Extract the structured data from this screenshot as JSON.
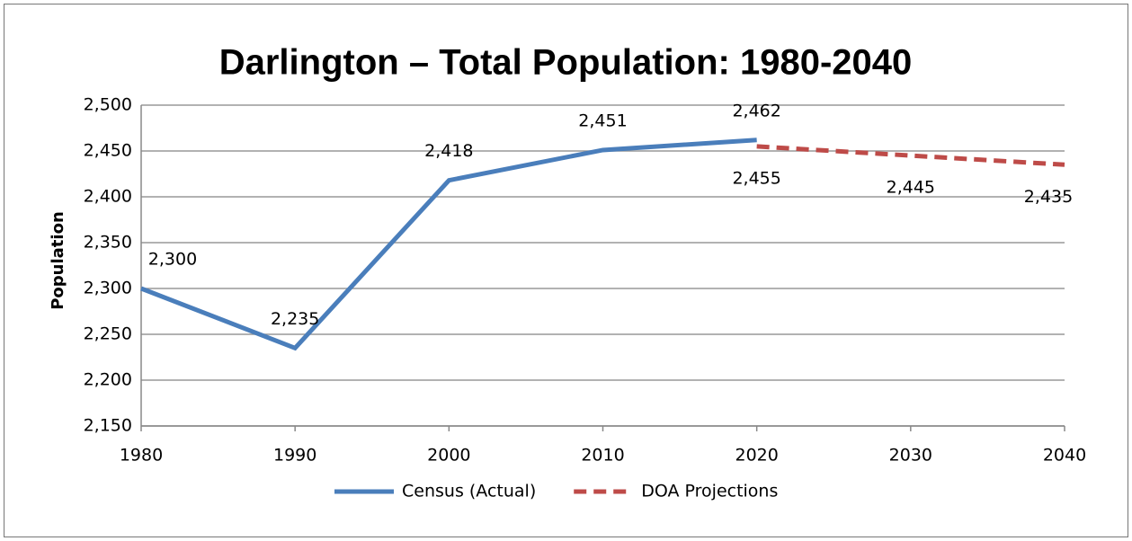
{
  "chart_data": {
    "type": "line",
    "title": "Darlington – Total Population: 1980-2040",
    "y_label": "Population",
    "series": [
      {
        "name": "Census (Actual)",
        "color": "#4a7ebb",
        "dash": false,
        "x": [
          1980,
          1990,
          2000,
          2010,
          2020
        ],
        "values": [
          2300,
          2235,
          2418,
          2451,
          2462
        ],
        "value_labels": [
          "2,300",
          "2,235",
          "2,418",
          "2,451",
          "2,462"
        ],
        "label_position": "above"
      },
      {
        "name": "DOA Projections",
        "color": "#be4b48",
        "dash": true,
        "x": [
          2020,
          2030,
          2040
        ],
        "values": [
          2455,
          2445,
          2435
        ],
        "value_labels": [
          "2,455",
          "2,445",
          "2,435"
        ],
        "label_position": "below"
      }
    ],
    "xlim": [
      1980,
      2040
    ],
    "xticks": [
      1980,
      1990,
      2000,
      2010,
      2020,
      2030,
      2040
    ],
    "ylim": [
      2150,
      2500
    ],
    "yticks": [
      {
        "value": 2150,
        "label": "2,150"
      },
      {
        "value": 2200,
        "label": "2,200"
      },
      {
        "value": 2250,
        "label": "2,250"
      },
      {
        "value": 2300,
        "label": "2,300"
      },
      {
        "value": 2350,
        "label": "2,350"
      },
      {
        "value": 2400,
        "label": "2,400"
      },
      {
        "value": 2450,
        "label": "2,450"
      },
      {
        "value": 2500,
        "label": "2,500"
      }
    ],
    "grid": true,
    "legend": "bottom"
  }
}
